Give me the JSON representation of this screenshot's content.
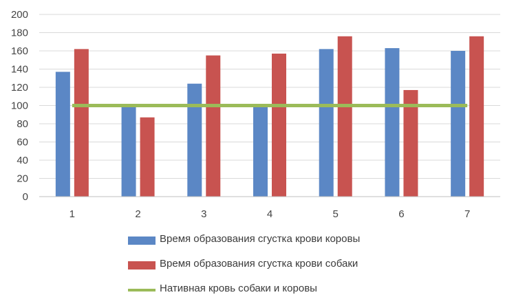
{
  "chart_data": {
    "type": "bar",
    "categories": [
      "1",
      "2",
      "3",
      "4",
      "5",
      "6",
      "7"
    ],
    "series": [
      {
        "name": "Время образования сгустка крови коровы",
        "type": "bar",
        "color": "#5b87c5",
        "values": [
          137,
          100,
          124,
          100,
          162,
          163,
          160
        ]
      },
      {
        "name": "Время образования сгустка крови собаки",
        "type": "bar",
        "color": "#c85350",
        "values": [
          162,
          87,
          155,
          157,
          176,
          117,
          176
        ]
      },
      {
        "name": "Нативная кровь собаки и коровы",
        "type": "line",
        "color": "#9bbb59",
        "values": [
          100,
          100,
          100,
          100,
          100,
          100,
          100
        ]
      }
    ],
    "ylim": [
      0,
      200
    ],
    "yticks": [
      "0",
      "20",
      "40",
      "60",
      "80",
      "100",
      "120",
      "140",
      "160",
      "180",
      "200"
    ],
    "grid": true,
    "legend_position": "bottom",
    "title": "",
    "xlabel": "",
    "ylabel": ""
  }
}
